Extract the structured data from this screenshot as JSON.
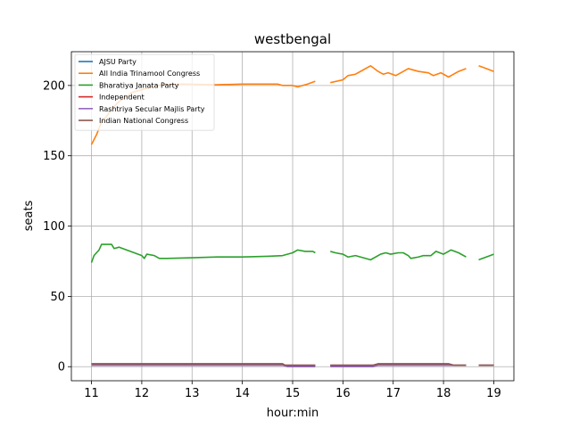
{
  "chart_data": {
    "type": "line",
    "title": "westbengal",
    "xlabel": "hour:min",
    "ylabel": "seats",
    "xlim": [
      10.6,
      19.4
    ],
    "ylim": [
      -10,
      224
    ],
    "xticks": [
      11,
      12,
      13,
      14,
      15,
      16,
      17,
      18,
      19
    ],
    "yticks": [
      0,
      50,
      100,
      150,
      200
    ],
    "grid": true,
    "legend_position": "top-left",
    "series": [
      {
        "name": "AJSU Party",
        "color": "#1f77b4",
        "segments": [
          [
            [
              11.0,
              1
            ],
            [
              15.45,
              1
            ]
          ],
          [
            [
              15.75,
              1
            ],
            [
              18.45,
              1
            ]
          ],
          [
            [
              18.7,
              1
            ],
            [
              19.0,
              1
            ]
          ]
        ]
      },
      {
        "name": "All India Trinamool Congress",
        "color": "#ff7f0e",
        "segments": [
          [
            [
              11.0,
              158
            ],
            [
              11.1,
              165
            ],
            [
              11.2,
              174
            ],
            [
              11.3,
              178
            ],
            [
              11.4,
              183
            ],
            [
              11.5,
              187
            ],
            [
              11.6,
              190
            ],
            [
              11.7,
              192
            ],
            [
              11.8,
              195
            ],
            [
              12.0,
              197
            ],
            [
              12.3,
              200
            ],
            [
              12.8,
              201
            ],
            [
              13.5,
              200.5
            ],
            [
              14.0,
              201
            ],
            [
              14.5,
              201
            ],
            [
              14.7,
              201
            ],
            [
              14.8,
              200
            ],
            [
              15.0,
              200
            ],
            [
              15.1,
              199
            ],
            [
              15.3,
              201
            ],
            [
              15.45,
              203
            ]
          ],
          [
            [
              15.75,
              202
            ],
            [
              16.0,
              204
            ],
            [
              16.1,
              207
            ],
            [
              16.25,
              208
            ],
            [
              16.4,
              211
            ],
            [
              16.55,
              214
            ],
            [
              16.7,
              210
            ],
            [
              16.8,
              208
            ],
            [
              16.9,
              209
            ],
            [
              17.05,
              207
            ],
            [
              17.15,
              209
            ],
            [
              17.3,
              212
            ],
            [
              17.5,
              210
            ],
            [
              17.7,
              209
            ],
            [
              17.8,
              207
            ],
            [
              17.95,
              209
            ],
            [
              18.1,
              206
            ],
            [
              18.3,
              210
            ],
            [
              18.45,
              212
            ]
          ],
          [
            [
              18.7,
              214
            ],
            [
              18.85,
              212
            ],
            [
              19.0,
              210
            ]
          ]
        ]
      },
      {
        "name": "Bharatiya Janata Party",
        "color": "#2ca02c",
        "segments": [
          [
            [
              11.0,
              74
            ],
            [
              11.05,
              79
            ],
            [
              11.15,
              83
            ],
            [
              11.2,
              87
            ],
            [
              11.4,
              87
            ],
            [
              11.45,
              84
            ],
            [
              11.55,
              85
            ],
            [
              11.7,
              83
            ],
            [
              12.0,
              79
            ],
            [
              12.05,
              77
            ],
            [
              12.1,
              80
            ],
            [
              12.25,
              79
            ],
            [
              12.35,
              77
            ],
            [
              12.5,
              77
            ],
            [
              13.0,
              77.5
            ],
            [
              13.5,
              78
            ],
            [
              14.0,
              78
            ],
            [
              14.5,
              78.5
            ],
            [
              14.8,
              79
            ],
            [
              15.0,
              81
            ],
            [
              15.1,
              83
            ],
            [
              15.25,
              82
            ],
            [
              15.4,
              82
            ],
            [
              15.45,
              81
            ]
          ],
          [
            [
              15.75,
              82
            ],
            [
              15.85,
              81
            ],
            [
              16.0,
              80
            ],
            [
              16.1,
              78
            ],
            [
              16.25,
              79
            ],
            [
              16.55,
              76
            ],
            [
              16.75,
              80
            ],
            [
              16.85,
              81
            ],
            [
              16.95,
              80
            ],
            [
              17.1,
              81
            ],
            [
              17.2,
              81
            ],
            [
              17.3,
              79
            ],
            [
              17.35,
              77
            ],
            [
              17.5,
              78
            ],
            [
              17.6,
              79
            ],
            [
              17.75,
              79
            ],
            [
              17.85,
              82
            ],
            [
              18.0,
              80
            ],
            [
              18.15,
              83
            ],
            [
              18.3,
              81
            ],
            [
              18.45,
              78
            ]
          ],
          [
            [
              18.7,
              76
            ],
            [
              18.85,
              78
            ],
            [
              19.0,
              80
            ]
          ]
        ]
      },
      {
        "name": "Independent",
        "color": "#d62728",
        "segments": [
          [
            [
              11.0,
              2
            ],
            [
              14.8,
              2
            ],
            [
              14.85,
              1
            ],
            [
              15.45,
              1
            ]
          ],
          [
            [
              15.75,
              1
            ],
            [
              16.6,
              1
            ],
            [
              16.7,
              2
            ],
            [
              18.1,
              2
            ],
            [
              18.2,
              1
            ],
            [
              18.45,
              1
            ]
          ],
          [
            [
              18.7,
              1
            ],
            [
              19.0,
              1
            ]
          ]
        ]
      },
      {
        "name": "Rashtriya Secular Majlis Party",
        "color": "#9467bd",
        "segments": [
          [
            [
              11.0,
              1
            ],
            [
              14.8,
              1
            ],
            [
              14.9,
              0
            ],
            [
              15.45,
              0
            ]
          ],
          [
            [
              15.75,
              0
            ],
            [
              16.6,
              0
            ],
            [
              16.7,
              1
            ],
            [
              18.45,
              1
            ]
          ],
          [
            [
              18.7,
              1
            ],
            [
              19.0,
              1
            ]
          ]
        ]
      },
      {
        "name": "Indian National Congress",
        "color": "#8c564b",
        "segments": [
          [
            [
              11.0,
              2
            ],
            [
              14.8,
              2
            ],
            [
              14.85,
              1
            ],
            [
              15.45,
              1
            ]
          ],
          [
            [
              15.75,
              1
            ],
            [
              16.6,
              1
            ],
            [
              16.7,
              2
            ],
            [
              18.1,
              2
            ],
            [
              18.2,
              1
            ],
            [
              18.45,
              1
            ]
          ],
          [
            [
              18.7,
              1
            ],
            [
              19.0,
              1
            ]
          ]
        ]
      }
    ]
  }
}
